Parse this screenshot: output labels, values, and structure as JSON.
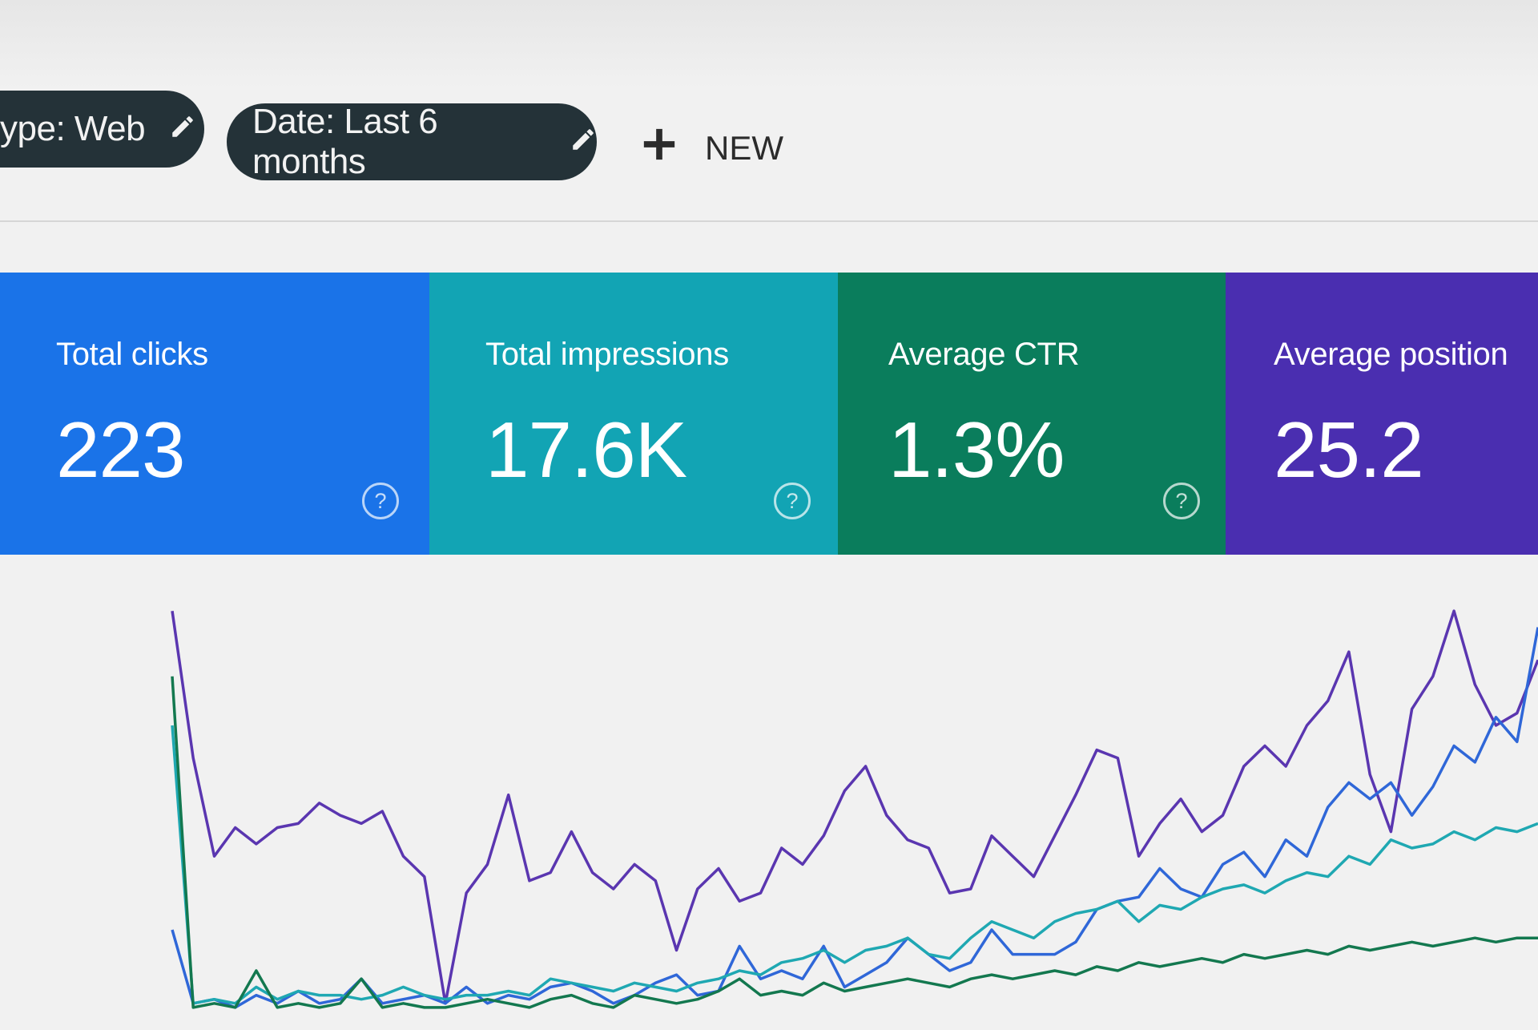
{
  "filters": {
    "type_chip": "ype: Web",
    "date_chip": "Date: Last 6 months",
    "new_label": "NEW"
  },
  "metrics": [
    {
      "label": "Total clicks",
      "value": "223",
      "color": "#1a73e8"
    },
    {
      "label": "Total impressions",
      "value": "17.6K",
      "color": "#12a4b4"
    },
    {
      "label": "Average CTR",
      "value": "1.3%",
      "color": "#0a7d5c"
    },
    {
      "label": "Average position",
      "value": "25.2",
      "color": "#4a2eb0"
    }
  ],
  "icons": {
    "edit": "pencil-icon",
    "add": "plus-icon",
    "help": "question-circle-icon"
  },
  "chart_data": {
    "type": "line",
    "grid": false,
    "ylim": [
      0,
      100
    ],
    "series": [
      {
        "key": "position",
        "color": "#5a36b0",
        "values": [
          98,
          62,
          38,
          45,
          41,
          45,
          46,
          51,
          48,
          46,
          49,
          38,
          33,
          2,
          29,
          36,
          53,
          32,
          34,
          44,
          34,
          30,
          36,
          32,
          15,
          30,
          35,
          27,
          29,
          40,
          36,
          43,
          54,
          60,
          48,
          42,
          40,
          29,
          30,
          43,
          38,
          33,
          43,
          53,
          64,
          62,
          38,
          46,
          52,
          44,
          48,
          60,
          65,
          60,
          70,
          76,
          88,
          58,
          44,
          74,
          82,
          98,
          80,
          70,
          73,
          86
        ]
      },
      {
        "key": "clicks",
        "color": "#2f67d8",
        "values": [
          20,
          2,
          3,
          1,
          4,
          2,
          5,
          2,
          3,
          8,
          2,
          3,
          4,
          2,
          6,
          2,
          4,
          3,
          6,
          7,
          5,
          2,
          4,
          7,
          9,
          4,
          5,
          16,
          8,
          10,
          8,
          16,
          6,
          9,
          12,
          18,
          14,
          10,
          12,
          20,
          14,
          14,
          14,
          17,
          25,
          27,
          28,
          35,
          30,
          28,
          36,
          39,
          33,
          42,
          38,
          50,
          56,
          52,
          56,
          48,
          55,
          65,
          61,
          72,
          66,
          94
        ]
      },
      {
        "key": "impressions",
        "color": "#1fa8b2",
        "values": [
          70,
          2,
          3,
          2,
          6,
          3,
          5,
          4,
          4,
          3,
          4,
          6,
          4,
          3,
          4,
          4,
          5,
          4,
          8,
          7,
          6,
          5,
          7,
          6,
          5,
          7,
          8,
          10,
          9,
          12,
          13,
          15,
          12,
          15,
          16,
          18,
          14,
          13,
          18,
          22,
          20,
          18,
          22,
          24,
          25,
          27,
          22,
          26,
          25,
          28,
          30,
          31,
          29,
          32,
          34,
          33,
          38,
          36,
          42,
          40,
          41,
          44,
          42,
          45,
          44,
          46
        ]
      },
      {
        "key": "ctr",
        "color": "#13784f",
        "values": [
          82,
          1,
          2,
          1,
          10,
          1,
          2,
          1,
          2,
          8,
          1,
          2,
          1,
          1,
          2,
          3,
          2,
          1,
          3,
          4,
          2,
          1,
          4,
          3,
          2,
          3,
          5,
          8,
          4,
          5,
          4,
          7,
          5,
          6,
          7,
          8,
          7,
          6,
          8,
          9,
          8,
          9,
          10,
          9,
          11,
          10,
          12,
          11,
          12,
          13,
          12,
          14,
          13,
          14,
          15,
          14,
          16,
          15,
          16,
          17,
          16,
          17,
          18,
          17,
          18,
          18
        ]
      }
    ]
  }
}
